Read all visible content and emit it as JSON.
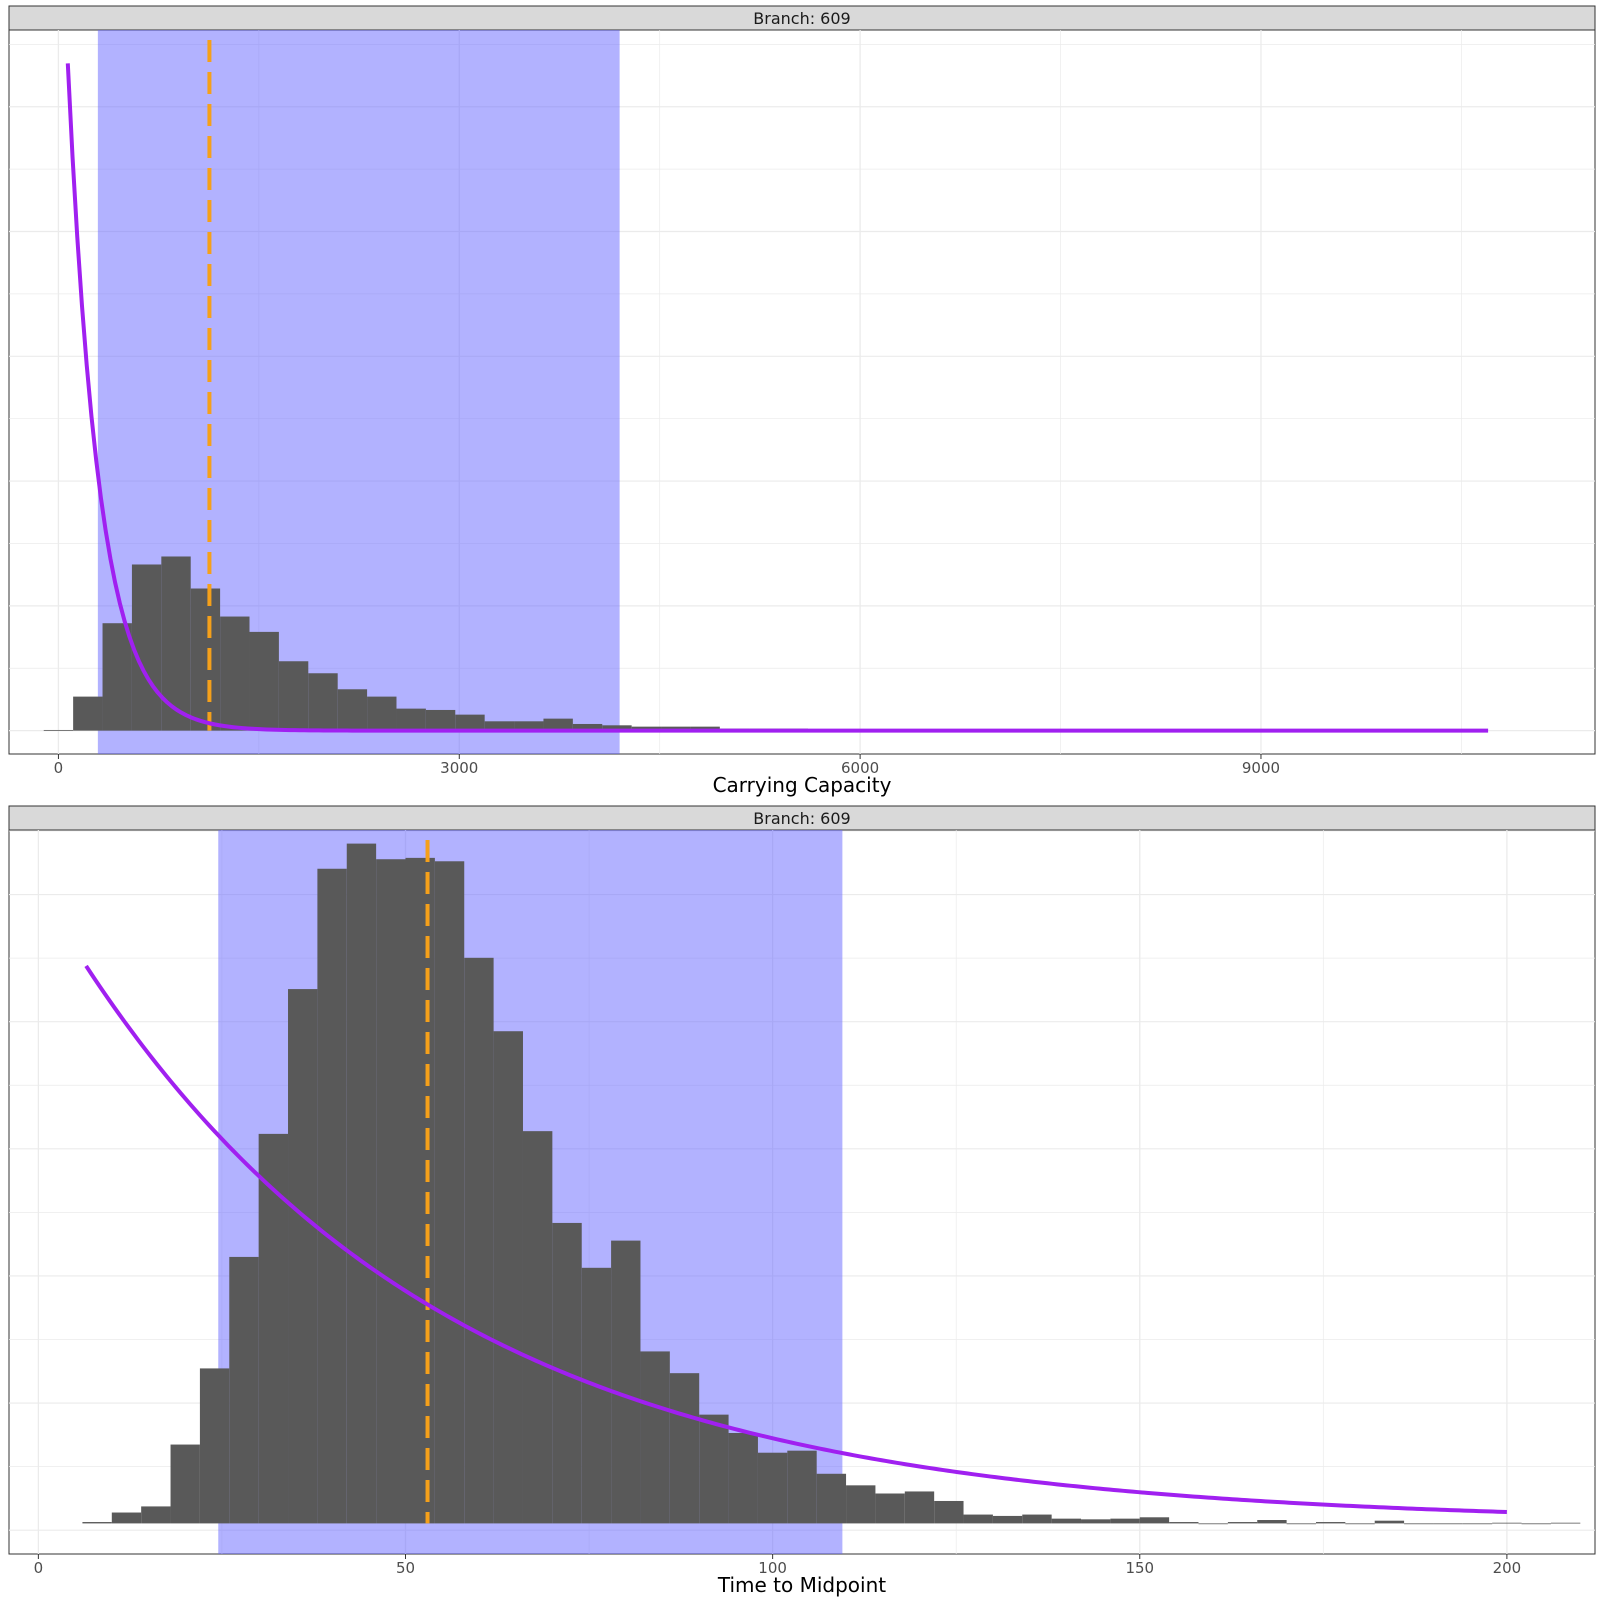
{
  "colors": {
    "bar": "#595959",
    "ci_band": "#6666ff",
    "prior_line": "#a020f0",
    "median_line": "#f5a01a",
    "strip_bg": "#d9d9d9",
    "grid": "#ebebeb"
  },
  "chart_data": [
    {
      "type": "histogram",
      "strip_label": "Branch: 609",
      "xlabel": "Carrying Capacity",
      "ylabel": "",
      "xlim": [
        -370,
        11500
      ],
      "ylim": [
        -0.035,
        1.05
      ],
      "x_ticks": [
        0,
        3000,
        6000,
        9000
      ],
      "x_tick_labels": [
        "0",
        "3000",
        "6000",
        "9000"
      ],
      "grid": true,
      "bin_width": 220,
      "bins_start": -110,
      "counts": [
        0.001,
        0.051,
        0.161,
        0.249,
        0.261,
        0.213,
        0.171,
        0.148,
        0.104,
        0.086,
        0.062,
        0.051,
        0.033,
        0.031,
        0.024,
        0.014,
        0.014,
        0.018,
        0.01,
        0.008,
        0.006,
        0.006,
        0.006,
        0.003,
        0.003,
        0.003
      ],
      "ci_band": [
        295,
        4200
      ],
      "median": 1130,
      "prior_curve": {
        "type": "exponential",
        "x_start": 70,
        "x_end": 10700,
        "y_start": 1.0,
        "rate": 0.00425
      }
    },
    {
      "type": "histogram",
      "strip_label": "Branch: 609",
      "xlabel": "Time to Midpoint",
      "ylabel": "",
      "xlim": [
        -4,
        212
      ],
      "ylim": [
        -0.045,
        1.02
      ],
      "x_ticks": [
        0,
        50,
        100,
        150,
        200
      ],
      "x_tick_labels": [
        "0",
        "50",
        "100",
        "150",
        "200"
      ],
      "grid": true,
      "bin_width": 4,
      "bins_start": 6,
      "counts": [
        0.002,
        0.016,
        0.025,
        0.116,
        0.228,
        0.392,
        0.573,
        0.786,
        0.963,
        1.0,
        0.977,
        0.979,
        0.974,
        0.832,
        0.724,
        0.577,
        0.442,
        0.376,
        0.416,
        0.253,
        0.221,
        0.16,
        0.133,
        0.104,
        0.107,
        0.073,
        0.056,
        0.044,
        0.047,
        0.033,
        0.013,
        0.011,
        0.013,
        0.007,
        0.006,
        0.007,
        0.009,
        0.002,
        0.0,
        0.002,
        0.005,
        0.0,
        0.002,
        0.0,
        0.004,
        0.0,
        0.0,
        0.0,
        0.001,
        0.0,
        0.001
      ],
      "ci_band": [
        24.5,
        109.5
      ],
      "median": 53,
      "prior_curve": {
        "type": "exponential",
        "x_start": 6.5,
        "x_end": 200,
        "y_start": 0.82,
        "rate": 0.0201
      }
    }
  ]
}
